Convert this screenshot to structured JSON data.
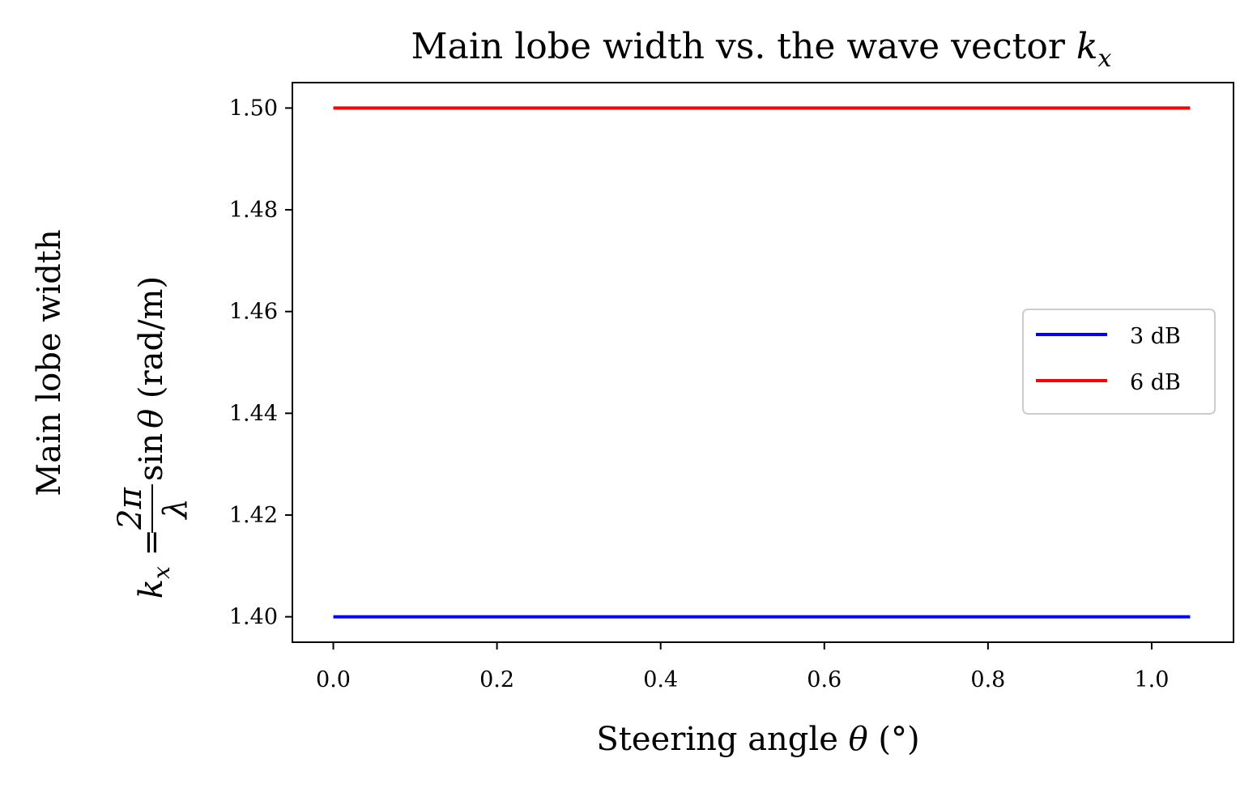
{
  "chart_data": {
    "type": "line",
    "title": {
      "text": "Main lobe width vs. the wave vector ",
      "variable": "k",
      "subscript": "x"
    },
    "xlabel": {
      "text": "Steering angle ",
      "variable": "θ",
      "unit": " (°)"
    },
    "ylabel": {
      "line1": "Main lobe width",
      "lhs_var": "k",
      "lhs_sub": "x",
      "equals": " = ",
      "numerator": "2π",
      "denominator": "λ",
      "func": "sin",
      "func_var": "θ",
      "unit": " (rad/m)"
    },
    "xlim": [
      -0.05,
      1.1
    ],
    "ylim": [
      1.395,
      1.505
    ],
    "x_ticks": [
      "0.0",
      "0.2",
      "0.4",
      "0.6",
      "0.8",
      "1.0"
    ],
    "y_ticks": [
      "1.40",
      "1.42",
      "1.44",
      "1.46",
      "1.48",
      "1.50"
    ],
    "series": [
      {
        "name": "3 dB",
        "color": "#0000ff",
        "x": [
          0.0,
          1.047
        ],
        "y": [
          1.4,
          1.4
        ]
      },
      {
        "name": "6 dB",
        "color": "#ff0000",
        "x": [
          0.0,
          1.047
        ],
        "y": [
          1.5,
          1.5
        ]
      }
    ],
    "legend_position": "center-right",
    "grid": false
  }
}
